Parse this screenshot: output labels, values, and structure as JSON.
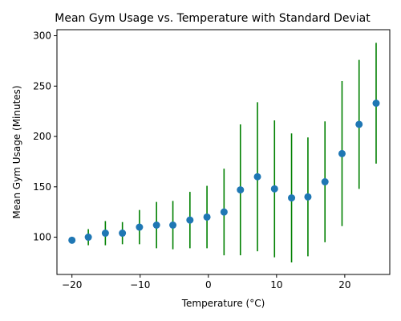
{
  "chart_data": {
    "type": "scatter",
    "title": "Mean Gym Usage vs. Temperature with Standard Deviat",
    "xlabel": "Temperature (°C)",
    "ylabel": "Mean Gym Usage (Minutes)",
    "xlim": [
      -22.2,
      26.6
    ],
    "ylim": [
      63,
      306
    ],
    "xticks": [
      -20,
      -10,
      0,
      10,
      20
    ],
    "yticks": [
      100,
      150,
      200,
      250,
      300
    ],
    "grid": false,
    "marker_color": "#1f77b4",
    "errorbar_color": "#008000",
    "points": [
      {
        "x": -20.0,
        "y": 97,
        "sd": 0
      },
      {
        "x": -17.6,
        "y": 100,
        "sd": 8
      },
      {
        "x": -15.1,
        "y": 104,
        "sd": 12
      },
      {
        "x": -12.6,
        "y": 104,
        "sd": 11
      },
      {
        "x": -10.1,
        "y": 110,
        "sd": 17
      },
      {
        "x": -7.6,
        "y": 112,
        "sd": 23
      },
      {
        "x": -5.2,
        "y": 112,
        "sd": 24
      },
      {
        "x": -2.7,
        "y": 117,
        "sd": 28
      },
      {
        "x": -0.2,
        "y": 120,
        "sd": 31
      },
      {
        "x": 2.3,
        "y": 125,
        "sd": 43
      },
      {
        "x": 4.7,
        "y": 147,
        "sd": 65
      },
      {
        "x": 7.2,
        "y": 160,
        "sd": 74
      },
      {
        "x": 9.7,
        "y": 148,
        "sd": 68
      },
      {
        "x": 12.2,
        "y": 139,
        "sd": 64
      },
      {
        "x": 14.6,
        "y": 140,
        "sd": 59
      },
      {
        "x": 17.1,
        "y": 155,
        "sd": 60
      },
      {
        "x": 19.6,
        "y": 183,
        "sd": 72
      },
      {
        "x": 22.1,
        "y": 212,
        "sd": 64
      },
      {
        "x": 24.6,
        "y": 233,
        "sd": 60
      }
    ]
  }
}
